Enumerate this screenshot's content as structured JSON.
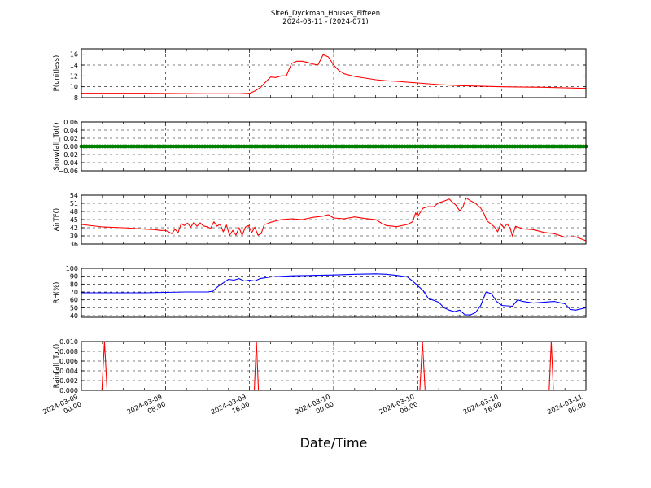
{
  "figure": {
    "title_line1": "Site6_Dyckman_Houses_Fifteen",
    "title_line2": "2024-03-11 - (2024-071)",
    "xlabel": "Date/Time"
  },
  "x_tick_labels": [
    [
      "2024-03-09",
      "00:00"
    ],
    [
      "2024-03-09",
      "08:00"
    ],
    [
      "2024-03-09",
      "16:00"
    ],
    [
      "2024-03-10",
      "00:00"
    ],
    [
      "2024-03-10",
      "08:00"
    ],
    [
      "2024-03-10",
      "16:00"
    ],
    [
      "2024-03-11",
      "00:00"
    ]
  ],
  "chart_data": [
    {
      "type": "line",
      "ylabel": "P(unitless)",
      "ylim": [
        8,
        17
      ],
      "yticks": [
        8,
        10,
        12,
        14,
        16
      ],
      "ytick_labels": [
        "8",
        "10",
        "12",
        "14",
        "16"
      ],
      "grid": true,
      "xlim_hours": [
        0,
        48
      ],
      "series": [
        {
          "color": "#ff0000",
          "points": [
            [
              0,
              8.8
            ],
            [
              6,
              8.8
            ],
            [
              12,
              8.7
            ],
            [
              15,
              8.7
            ],
            [
              16,
              8.8
            ],
            [
              16.5,
              9.2
            ],
            [
              17,
              9.8
            ],
            [
              17.5,
              10.8
            ],
            [
              18,
              11.8
            ],
            [
              18.5,
              11.7
            ],
            [
              19,
              12.0
            ],
            [
              19.5,
              12.0
            ],
            [
              20,
              14.3
            ],
            [
              20.5,
              14.7
            ],
            [
              21,
              14.7
            ],
            [
              21.5,
              14.5
            ],
            [
              22,
              14.2
            ],
            [
              22.5,
              14.0
            ],
            [
              23,
              15.9
            ],
            [
              23.5,
              15.5
            ],
            [
              24,
              14.0
            ],
            [
              24.5,
              13.0
            ],
            [
              25,
              12.4
            ],
            [
              26,
              11.9
            ],
            [
              27,
              11.6
            ],
            [
              28,
              11.3
            ],
            [
              29,
              11.1
            ],
            [
              30,
              11.0
            ],
            [
              32,
              10.7
            ],
            [
              34,
              10.4
            ],
            [
              36,
              10.2
            ],
            [
              40,
              10.0
            ],
            [
              44,
              9.9
            ],
            [
              48,
              9.7
            ]
          ]
        }
      ]
    },
    {
      "type": "line",
      "ylabel": "Snowfall_Tot()",
      "ylim": [
        -0.06,
        0.06
      ],
      "yticks": [
        -0.06,
        -0.04,
        -0.02,
        0.0,
        0.02,
        0.04,
        0.06
      ],
      "ytick_labels": [
        "−0.06",
        "−0.04",
        "−0.02",
        "0.00",
        "0.02",
        "0.04",
        "0.06"
      ],
      "grid": true,
      "xlim_hours": [
        0,
        48
      ],
      "series": [
        {
          "color": "#008000",
          "marker": "circle",
          "points": [
            [
              0,
              0
            ],
            [
              48,
              0
            ]
          ]
        }
      ]
    },
    {
      "type": "line",
      "ylabel": "AirTF()",
      "ylim": [
        36,
        54
      ],
      "yticks": [
        36,
        39,
        42,
        45,
        48,
        51,
        54
      ],
      "ytick_labels": [
        "36",
        "39",
        "42",
        "45",
        "48",
        "51",
        "54"
      ],
      "grid": true,
      "xlim_hours": [
        0,
        48
      ],
      "series": [
        {
          "color": "#ff0000",
          "points": [
            [
              0,
              43.2
            ],
            [
              2,
              42.3
            ],
            [
              4,
              42.0
            ],
            [
              6,
              41.5
            ],
            [
              7,
              41.3
            ],
            [
              7.5,
              41.0
            ],
            [
              8,
              41.0
            ],
            [
              8.3,
              40.5
            ],
            [
              8.6,
              39.8
            ],
            [
              8.9,
              41.5
            ],
            [
              9.2,
              40.2
            ],
            [
              9.5,
              43.5
            ],
            [
              9.8,
              42.8
            ],
            [
              10.1,
              43.7
            ],
            [
              10.4,
              42.2
            ],
            [
              10.7,
              44.0
            ],
            [
              11,
              42.5
            ],
            [
              11.3,
              43.8
            ],
            [
              11.6,
              42.7
            ],
            [
              12,
              42.3
            ],
            [
              12.3,
              41.8
            ],
            [
              12.6,
              44.2
            ],
            [
              12.9,
              42.6
            ],
            [
              13.2,
              43.3
            ],
            [
              13.5,
              40.5
            ],
            [
              13.8,
              43.0
            ],
            [
              14.1,
              39.2
            ],
            [
              14.4,
              41.0
            ],
            [
              14.7,
              39.3
            ],
            [
              15,
              42.0
            ],
            [
              15.3,
              39.2
            ],
            [
              15.6,
              42.2
            ],
            [
              15.9,
              42.8
            ],
            [
              16.2,
              40.2
            ],
            [
              16.5,
              42.2
            ],
            [
              16.8,
              39.3
            ],
            [
              17.1,
              39.8
            ],
            [
              17.4,
              43.2
            ],
            [
              17.7,
              43.5
            ],
            [
              18,
              44.0
            ],
            [
              19,
              45.0
            ],
            [
              20,
              45.3
            ],
            [
              21,
              45.0
            ],
            [
              22,
              45.8
            ],
            [
              23,
              46.3
            ],
            [
              23.5,
              46.8
            ],
            [
              24,
              45.6
            ],
            [
              25,
              45.3
            ],
            [
              26,
              46.0
            ],
            [
              27,
              45.4
            ],
            [
              28,
              45.0
            ],
            [
              28.5,
              43.8
            ],
            [
              29,
              42.8
            ],
            [
              30,
              42.4
            ],
            [
              31,
              43.2
            ],
            [
              31.5,
              44.2
            ],
            [
              31.8,
              47.5
            ],
            [
              32,
              46.2
            ],
            [
              32.5,
              49.2
            ],
            [
              33,
              49.8
            ],
            [
              33.5,
              49.7
            ],
            [
              34,
              51.2
            ],
            [
              34.5,
              51.8
            ],
            [
              35,
              52.6
            ],
            [
              35.3,
              51.4
            ],
            [
              35.6,
              50.5
            ],
            [
              36,
              48.2
            ],
            [
              36.3,
              49.7
            ],
            [
              36.6,
              53.0
            ],
            [
              37,
              52.0
            ],
            [
              37.5,
              51.0
            ],
            [
              38,
              49.2
            ],
            [
              38.3,
              47.2
            ],
            [
              38.6,
              44.5
            ],
            [
              39,
              43.3
            ],
            [
              39.3,
              42.3
            ],
            [
              39.6,
              40.5
            ],
            [
              39.9,
              43.5
            ],
            [
              40.2,
              42.0
            ],
            [
              40.5,
              43.4
            ],
            [
              40.8,
              41.8
            ],
            [
              41,
              38.9
            ],
            [
              41.3,
              42.5
            ],
            [
              42,
              41.6
            ],
            [
              43,
              41.3
            ],
            [
              44,
              40.3
            ],
            [
              45,
              39.8
            ],
            [
              46,
              38.5
            ],
            [
              47,
              38.7
            ],
            [
              48,
              37.2
            ]
          ]
        }
      ]
    },
    {
      "type": "line",
      "ylabel": "RH(%)",
      "ylim": [
        38,
        100
      ],
      "yticks": [
        40,
        50,
        60,
        70,
        80,
        90,
        100
      ],
      "ytick_labels": [
        "40",
        "50",
        "60",
        "70",
        "80",
        "90",
        "100"
      ],
      "grid": true,
      "xlim_hours": [
        0,
        48
      ],
      "series": [
        {
          "color": "#0000ff",
          "points": [
            [
              0,
              69
            ],
            [
              2,
              69
            ],
            [
              4,
              69
            ],
            [
              6,
              69
            ],
            [
              8,
              69.5
            ],
            [
              10,
              70
            ],
            [
              12,
              70
            ],
            [
              12.5,
              71
            ],
            [
              13,
              77
            ],
            [
              14,
              86
            ],
            [
              14.5,
              85
            ],
            [
              15,
              87
            ],
            [
              15.5,
              84
            ],
            [
              16,
              85
            ],
            [
              16.5,
              84
            ],
            [
              17,
              87
            ],
            [
              18,
              89
            ],
            [
              20,
              90.5
            ],
            [
              22,
              91
            ],
            [
              24,
              91.5
            ],
            [
              26,
              92.5
            ],
            [
              28,
              93
            ],
            [
              29,
              92.5
            ],
            [
              30,
              91
            ],
            [
              31,
              89
            ],
            [
              31.5,
              84
            ],
            [
              32,
              78
            ],
            [
              32.5,
              72
            ],
            [
              33,
              62
            ],
            [
              34,
              57
            ],
            [
              34.5,
              50
            ],
            [
              35,
              47
            ],
            [
              35.5,
              45
            ],
            [
              36,
              47
            ],
            [
              36.5,
              41
            ],
            [
              37,
              41
            ],
            [
              37.5,
              44
            ],
            [
              38,
              53
            ],
            [
              38.5,
              70
            ],
            [
              39,
              68
            ],
            [
              39.5,
              58
            ],
            [
              40,
              53
            ],
            [
              41,
              52
            ],
            [
              41.5,
              60
            ],
            [
              42,
              58
            ],
            [
              43,
              56
            ],
            [
              44,
              57
            ],
            [
              45,
              58
            ],
            [
              46,
              55
            ],
            [
              46.5,
              48
            ],
            [
              47,
              47
            ],
            [
              48,
              50
            ]
          ]
        }
      ]
    },
    {
      "type": "line",
      "ylabel": "Rainfall_Tot()",
      "ylim": [
        0,
        0.01
      ],
      "yticks": [
        0,
        0.002,
        0.004,
        0.006,
        0.008,
        0.01
      ],
      "ytick_labels": [
        "0.000",
        "0.002",
        "0.004",
        "0.006",
        "0.008",
        "0.010"
      ],
      "grid": true,
      "xlim_hours": [
        0,
        48
      ],
      "series": [
        {
          "color": "#ff0000",
          "points": [
            [
              0,
              0
            ],
            [
              1.95,
              0
            ],
            [
              2.2,
              0.01
            ],
            [
              2.45,
              0
            ],
            [
              16.45,
              0
            ],
            [
              16.65,
              0.01
            ],
            [
              16.85,
              0
            ],
            [
              32.2,
              0
            ],
            [
              32.45,
              0.01
            ],
            [
              32.7,
              0
            ],
            [
              44.5,
              0
            ],
            [
              44.7,
              0.01
            ],
            [
              44.9,
              0
            ],
            [
              48,
              0
            ]
          ]
        }
      ]
    }
  ]
}
